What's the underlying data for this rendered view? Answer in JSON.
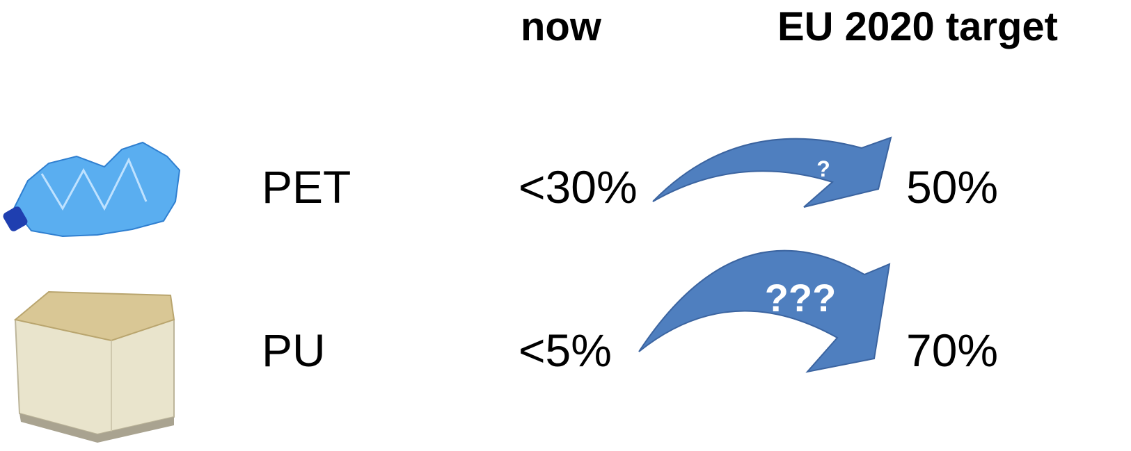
{
  "header": {
    "columns": [
      "now",
      "EU 2020 target"
    ]
  },
  "rows": [
    {
      "label": "PET",
      "now": "<30%",
      "target": "50%",
      "arrow_label": "?"
    },
    {
      "label": "PU",
      "now": "<5%",
      "target": "70%",
      "arrow_label": "???"
    }
  ]
}
